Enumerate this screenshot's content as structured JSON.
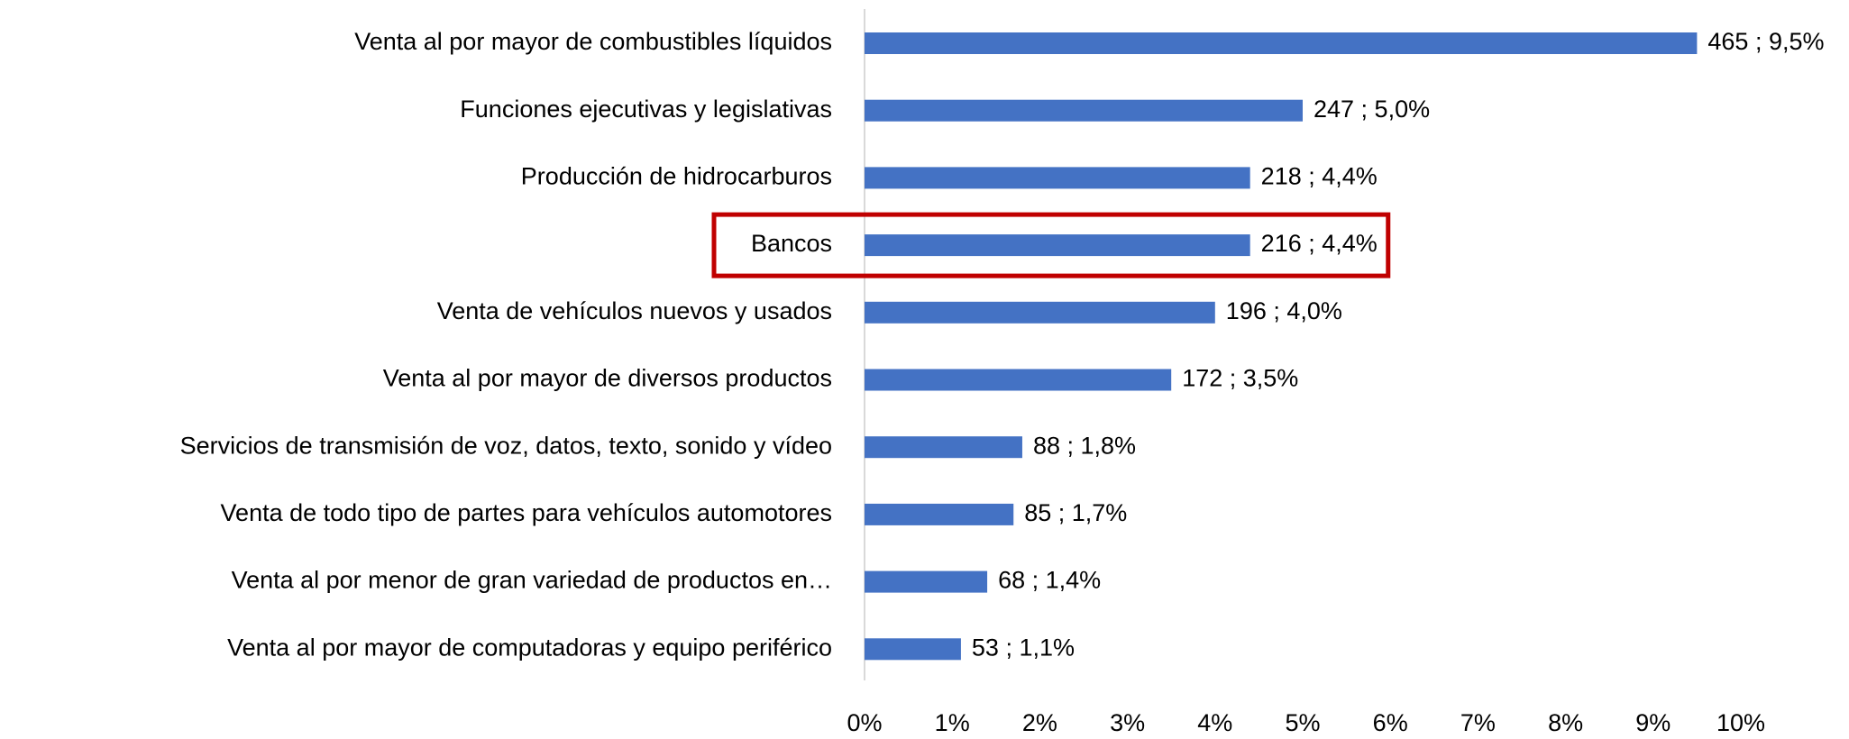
{
  "chart_data": {
    "type": "hbar",
    "categories": [
      "Venta al por mayor de combustibles líquidos",
      "Funciones ejecutivas y legislativas",
      "Producción de hidrocarburos",
      "Bancos",
      "Venta de vehículos nuevos y usados",
      "Venta al por mayor de diversos productos",
      "Servicios de transmisión de voz, datos, texto, sonido y vídeo",
      "Venta de todo tipo de partes para vehículos automotores",
      "Venta al por menor de gran variedad de productos en…",
      "Venta al por mayor de computadoras y equipo periférico"
    ],
    "values": [
      9.5,
      5.0,
      4.4,
      4.4,
      4.0,
      3.5,
      1.8,
      1.7,
      1.4,
      1.1
    ],
    "value_labels": [
      "465 ; 9,5%",
      "247 ; 5,0%",
      "218 ; 4,4%",
      "216 ; 4,4%",
      "196 ; 4,0%",
      "172 ; 3,5%",
      "88 ; 1,8%",
      "85 ; 1,7%",
      "68 ; 1,4%",
      "53 ; 1,1%"
    ],
    "color": "#4472c4",
    "xlim": [
      0,
      10
    ],
    "xticks": [
      {
        "value": 0,
        "label": "0%"
      },
      {
        "value": 1,
        "label": "1%"
      },
      {
        "value": 2,
        "label": "2%"
      },
      {
        "value": 3,
        "label": "3%"
      },
      {
        "value": 4,
        "label": "4%"
      },
      {
        "value": 5,
        "label": "5%"
      },
      {
        "value": 6,
        "label": "6%"
      },
      {
        "value": 7,
        "label": "7%"
      },
      {
        "value": 8,
        "label": "8%"
      },
      {
        "value": 9,
        "label": "9%"
      },
      {
        "value": 10,
        "label": "10%"
      }
    ],
    "highlight": 3,
    "highlight_color": "#c00000"
  }
}
